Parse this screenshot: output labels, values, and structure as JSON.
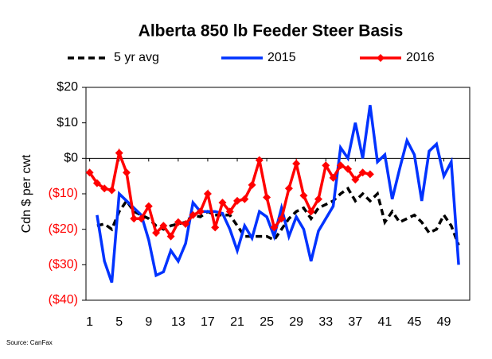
{
  "chart_data": {
    "type": "line",
    "title": "Alberta 850 lb Feeder Steer Basis",
    "y_label": "Cdn $ per cwt",
    "source": "Source:  CanFax",
    "x": [
      1,
      2,
      3,
      4,
      5,
      6,
      7,
      8,
      9,
      10,
      11,
      12,
      13,
      14,
      15,
      16,
      17,
      18,
      19,
      20,
      21,
      22,
      23,
      24,
      25,
      26,
      27,
      28,
      29,
      30,
      31,
      32,
      33,
      34,
      35,
      36,
      37,
      38,
      39,
      40,
      41,
      42,
      43,
      44,
      45,
      46,
      47,
      48,
      49,
      50,
      51
    ],
    "xlim": [
      0.5,
      52.5
    ],
    "xticks": [
      1,
      5,
      9,
      13,
      17,
      21,
      25,
      29,
      33,
      37,
      41,
      45,
      49
    ],
    "ylim": [
      -40,
      20
    ],
    "yticks": [
      {
        "value": 20,
        "label": "$20"
      },
      {
        "value": 10,
        "label": "$10"
      },
      {
        "value": 0,
        "label": "$0"
      },
      {
        "value": -10,
        "label": "($10)"
      },
      {
        "value": -20,
        "label": "($20)"
      },
      {
        "value": -30,
        "label": "($30)"
      },
      {
        "value": -40,
        "label": "($40)"
      }
    ],
    "series": [
      {
        "name": "5 yr avg",
        "color": "#000000",
        "dash": true,
        "values": [
          null,
          -19,
          -18.5,
          -20,
          -15,
          -12,
          -15,
          -16,
          -17,
          -19,
          -20,
          -19,
          -18.5,
          -18,
          -16,
          -16.5,
          -15,
          -16,
          -16,
          -16,
          -19,
          -22,
          -22,
          -22,
          -22,
          -23,
          -20,
          -17,
          -15,
          -14,
          -17,
          -14,
          -13,
          -12,
          -10,
          -8.5,
          -12,
          -10,
          -12,
          -10,
          -18,
          -15,
          -18,
          -17,
          -16,
          -18,
          -21,
          -20,
          -16,
          -19,
          -24.5
        ]
      },
      {
        "name": "2015",
        "color": "#0033ff",
        "values": [
          null,
          -16,
          -29,
          -35,
          -10,
          -12,
          -14,
          -16,
          -23,
          -33,
          -32,
          -26,
          -29,
          -24,
          -12.5,
          -15,
          -15,
          -15,
          -15.5,
          -20,
          -26,
          -19,
          -22.5,
          -15,
          -16.5,
          -22,
          -14,
          -22,
          -16.5,
          -20,
          -29,
          -20.5,
          -17,
          -13.5,
          3,
          0,
          10,
          0,
          15,
          -1,
          1,
          -11.5,
          -3,
          5,
          1,
          -12,
          2,
          4,
          -5,
          -1,
          -30
        ]
      },
      {
        "name": "2016",
        "color": "#ff0000",
        "marker": "diamond",
        "values": [
          -4,
          -7,
          -8.5,
          -9,
          1.5,
          -4,
          -17,
          -17,
          -13.5,
          -21,
          -19,
          -22,
          -18,
          -18.5,
          -16,
          -15,
          -10,
          -19.5,
          -12.5,
          -15,
          -12,
          -11.5,
          -7.5,
          -0.5,
          -11,
          -19.5,
          -17,
          -8.5,
          -1.5,
          -10.5,
          -15,
          -11.5,
          -2,
          -5.5,
          -2,
          -3,
          -6,
          -4,
          -4.5,
          null,
          null,
          null,
          null,
          null,
          null,
          null,
          null,
          null,
          null,
          null,
          null
        ]
      }
    ]
  }
}
